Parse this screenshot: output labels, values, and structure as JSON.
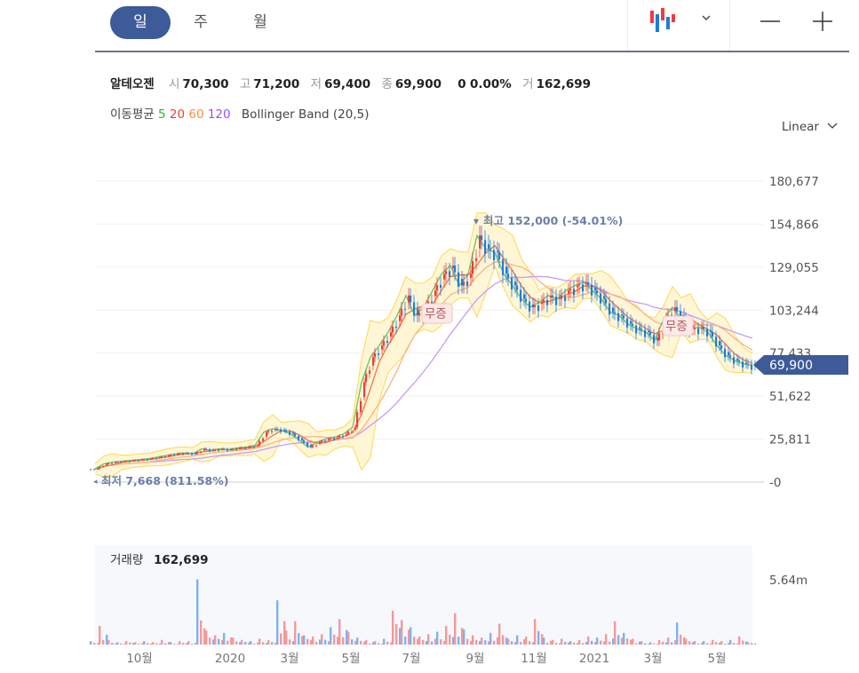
{
  "tabs": [
    {
      "label": "일",
      "selected": true
    },
    {
      "label": "주",
      "selected": false
    },
    {
      "label": "월",
      "selected": false
    }
  ],
  "toolbar": {
    "chart_type_icon": "candlestick-icon",
    "dropdown_icon": "chevron-down-icon",
    "zoom_out": "minus-icon",
    "zoom_in": "plus-icon"
  },
  "stock": {
    "name": "알테오젠",
    "open_label": "시",
    "open": "70,300",
    "high_label": "고",
    "high": "71,200",
    "low_label": "저",
    "low": "69,400",
    "close_label": "종",
    "close": "69,900",
    "change": "0",
    "change_pct": "0.00%",
    "volume_label": "거",
    "volume": "162,699"
  },
  "indicators": {
    "ma_label": "이동평균",
    "ma": [
      {
        "label": "5",
        "color": "#2db82d"
      },
      {
        "label": "20",
        "color": "#f03c3c"
      },
      {
        "label": "60",
        "color": "#ff8a3d"
      },
      {
        "label": "120",
        "color": "#9b4dff"
      }
    ],
    "bollinger": "Bollinger Band (20,5)"
  },
  "scale": {
    "label": "Linear"
  },
  "colors": {
    "up": "#f03c3c",
    "down": "#1f7ae0",
    "accent": "#3d5a99",
    "band_fill": "#fff6d6",
    "band_line": "#ffd84d"
  },
  "chart_data": {
    "type": "candlestick",
    "yticks": [
      "180,677",
      "154,866",
      "129,055",
      "103,244",
      "77,433",
      "51,622",
      "25,811",
      "-0"
    ],
    "ylim": [
      0,
      180677
    ],
    "xticks": [
      "10월",
      "2020",
      "3월",
      "5월",
      "7월",
      "9월",
      "11월",
      "2021",
      "3월",
      "5월"
    ],
    "current_price": "69,900",
    "max_annotation": {
      "label": "최고",
      "value": "152,000",
      "pct": "(-54.01%)"
    },
    "min_annotation": {
      "label": "최저",
      "value": "7,668",
      "pct": "(811.58%)"
    },
    "events": [
      "무증",
      "무증"
    ],
    "close": [
      8000,
      11000,
      12000,
      12500,
      13000,
      13500,
      14000,
      15000,
      16000,
      17000,
      17500,
      17000,
      20000,
      19000,
      20000,
      19500,
      20500,
      21000,
      22000,
      30000,
      32000,
      31000,
      29000,
      25000,
      21000,
      24000,
      26000,
      27000,
      29000,
      33000,
      60000,
      75000,
      82000,
      90000,
      100000,
      112000,
      100000,
      105000,
      115000,
      125000,
      130000,
      118000,
      125000,
      148000,
      140000,
      138000,
      125000,
      118000,
      110000,
      105000,
      108000,
      112000,
      110000,
      115000,
      118000,
      120000,
      115000,
      110000,
      102000,
      100000,
      95000,
      92000,
      90000,
      85000,
      98000,
      105000,
      98000,
      92000,
      93000,
      90000,
      82000,
      76000,
      73000,
      71000,
      69900
    ],
    "volume_label": "거래량",
    "volume_value": "162,699",
    "volume_max_label": "5.64m",
    "volume_m": [
      0.3,
      1.6,
      0.4,
      0.2,
      0.3,
      0.2,
      0.3,
      0.2,
      0.4,
      0.2,
      0.3,
      0.3,
      5.6,
      1.2,
      0.8,
      1.0,
      0.6,
      0.4,
      0.3,
      0.5,
      0.4,
      3.8,
      1.2,
      2.0,
      0.8,
      0.7,
      0.9,
      1.5,
      2.2,
      1.1,
      0.6,
      0.4,
      0.3,
      0.5,
      2.9,
      2.1,
      1.5,
      0.7,
      0.9,
      1.1,
      1.6,
      2.7,
      1.3,
      0.8,
      0.6,
      1.0,
      1.8,
      0.5,
      0.8,
      0.7,
      2.2,
      0.6,
      0.4,
      0.5,
      0.3,
      0.4,
      0.7,
      0.6,
      0.9,
      2.0,
      1.0,
      0.5,
      0.3,
      0.2,
      0.4,
      0.6,
      1.9,
      0.5,
      0.3,
      0.3,
      0.4,
      0.3,
      0.4,
      0.7,
      0.2
    ]
  }
}
